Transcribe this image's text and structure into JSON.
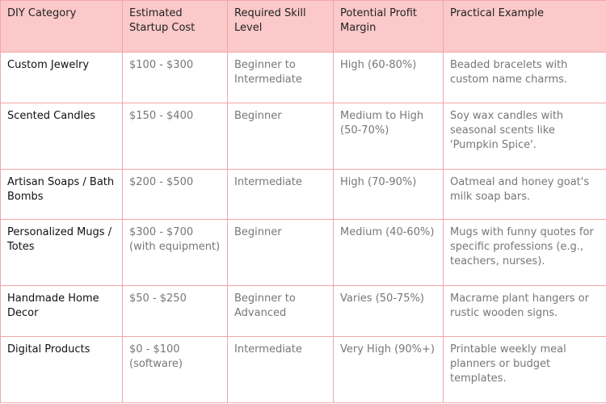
{
  "table": {
    "header": [
      "DIY Category",
      "Estimated Startup Cost",
      "Required Skill Level",
      "Potential Profit Margin",
      "Practical Example"
    ],
    "rows": [
      [
        "Custom Jewelry",
        "$100 - $300",
        "Beginner to Intermediate",
        "High (60-80%)",
        "Beaded bracelets with custom name charms."
      ],
      [
        "Scented Candles",
        "$150 - $400",
        "Beginner",
        "Medium to High (50-70%)",
        "Soy wax candles with seasonal scents like 'Pumpkin Spice'."
      ],
      [
        "Artisan Soaps / Bath Bombs",
        "$200 - $500",
        "Intermediate",
        "High (70-90%)",
        "Oatmeal and honey goat's milk soap bars."
      ],
      [
        "Personalized Mugs / Totes",
        "$300 - $700 (with equipment)",
        "Beginner",
        "Medium (40-60%)",
        "Mugs with funny quotes for specific professions (e.g., teachers, nurses)."
      ],
      [
        "Handmade Home Decor",
        "$50 - $250",
        "Beginner to Advanced",
        "Varies (50-75%)",
        "Macrame plant hangers or rustic wooden signs."
      ],
      [
        "Digital Products",
        "$0 - $100 (software)",
        "Intermediate",
        "Very High (90%+)",
        "Printable weekly meal planners or budget templates."
      ]
    ]
  }
}
